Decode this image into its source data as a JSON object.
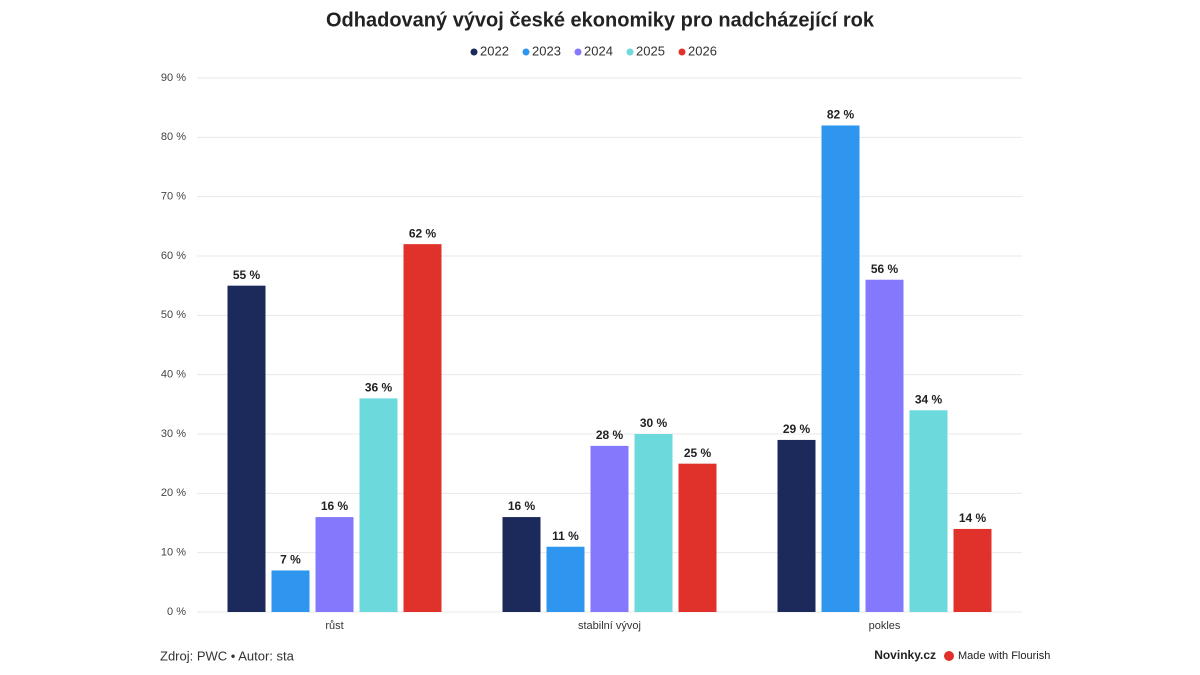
{
  "chart_data": {
    "type": "bar",
    "title": "Odhadovaný vývoj české ekonomiky pro nadcházející rok",
    "categories": [
      "růst",
      "stabilní vývoj",
      "pokles"
    ],
    "series": [
      {
        "name": "2022",
        "color": "#1b2a5a",
        "values": [
          55,
          16,
          29
        ],
        "value_labels": [
          "55 %",
          "16 %",
          "29 %"
        ]
      },
      {
        "name": "2023",
        "color": "#2e96ef",
        "values": [
          7,
          11,
          82
        ],
        "value_labels": [
          "7 %",
          "11 %",
          "82 %"
        ]
      },
      {
        "name": "2024",
        "color": "#8479fd",
        "values": [
          16,
          28,
          56
        ],
        "value_labels": [
          "16 %",
          "28 %",
          "56 %"
        ]
      },
      {
        "name": "2025",
        "color": "#6cd9dc",
        "values": [
          36,
          30,
          34
        ],
        "value_labels": [
          "36 %",
          "30 %",
          "34 %"
        ]
      },
      {
        "name": "2026",
        "color": "#e0312b",
        "values": [
          62,
          25,
          14
        ],
        "value_labels": [
          "62 %",
          "25 %",
          "14 %"
        ]
      }
    ],
    "ylim": [
      0,
      90
    ],
    "yticks": [
      {
        "value": 0,
        "label": "0 %"
      },
      {
        "value": 10,
        "label": "10 %"
      },
      {
        "value": 20,
        "label": "20 %"
      },
      {
        "value": 30,
        "label": "30 %"
      },
      {
        "value": 40,
        "label": "40 %"
      },
      {
        "value": 50,
        "label": "50 %"
      },
      {
        "value": 60,
        "label": "60 %"
      },
      {
        "value": 70,
        "label": "70 %"
      },
      {
        "value": 80,
        "label": "80 %"
      },
      {
        "value": 90,
        "label": "90 %"
      }
    ],
    "grid": true,
    "legend": "top",
    "footer": "Zdroj: PWC • Autor: sta",
    "brand": "Novinky.cz",
    "credit": "Made with Flourish"
  }
}
